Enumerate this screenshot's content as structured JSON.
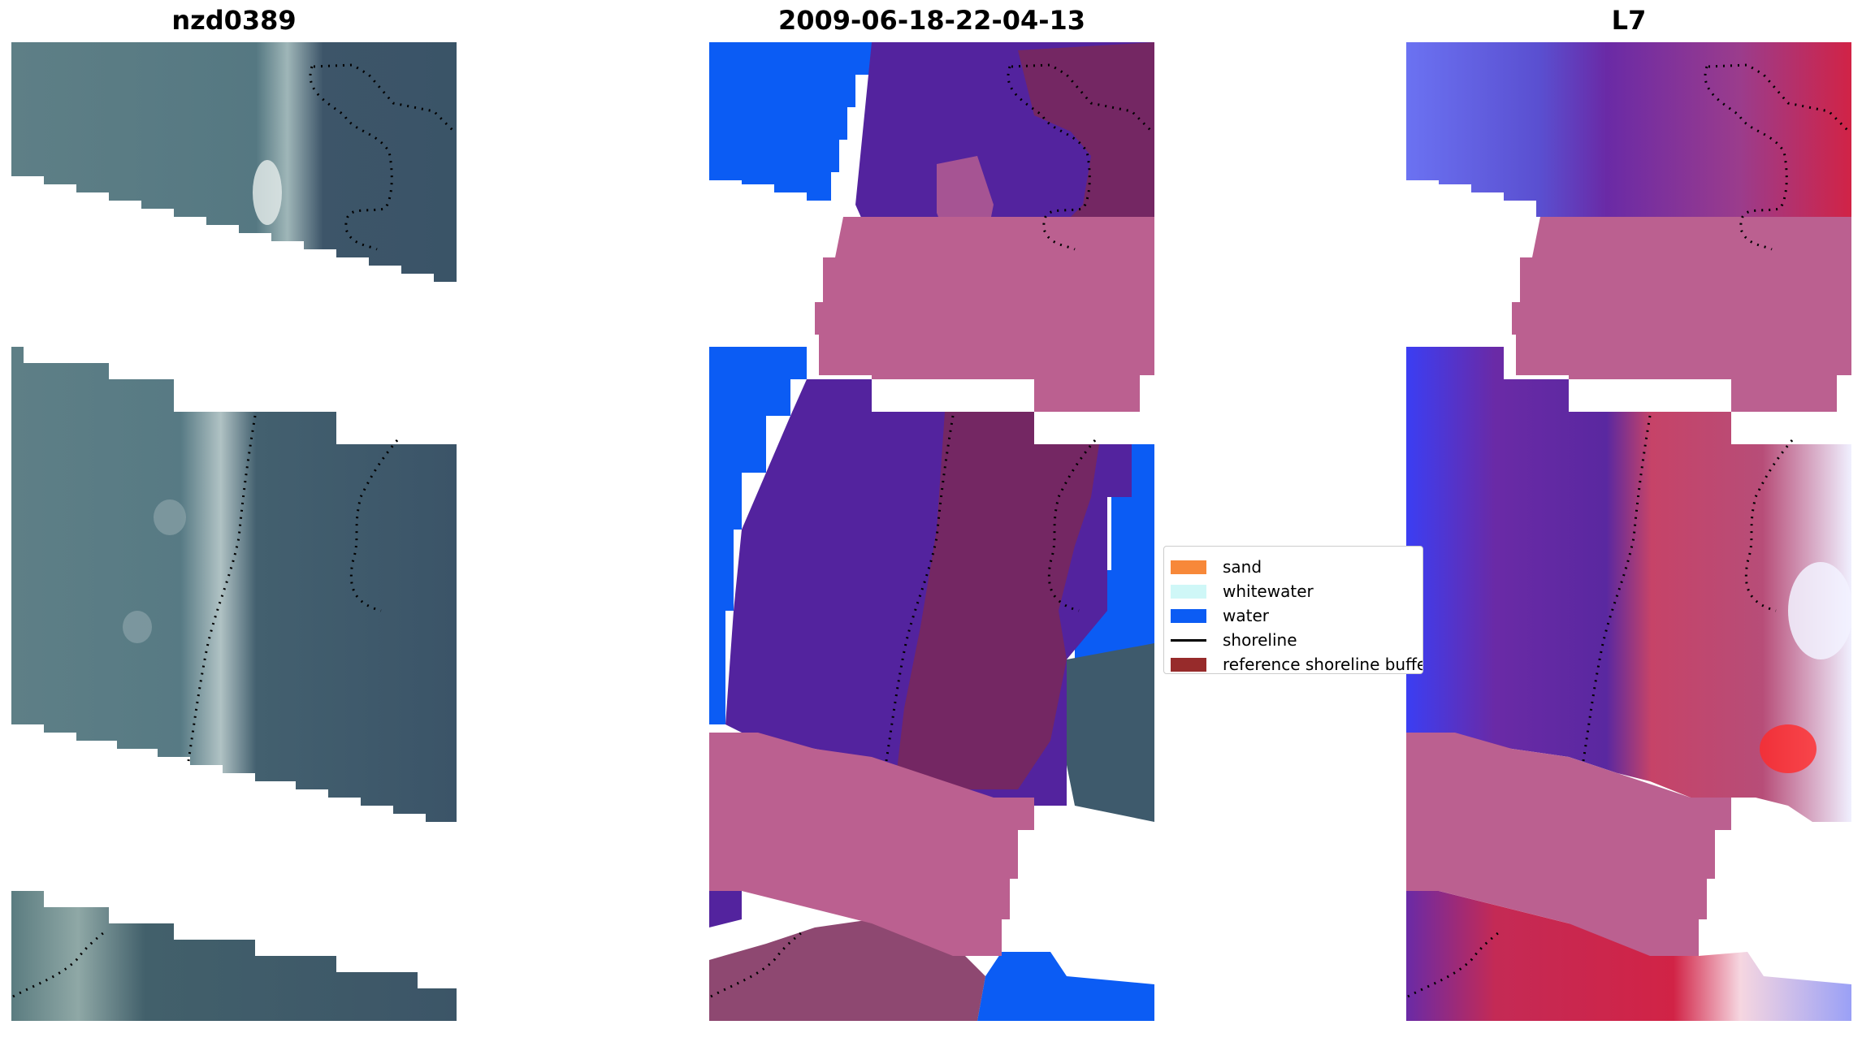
{
  "panels": [
    {
      "title": "nzd0389"
    },
    {
      "title": "2009-06-18-22-04-13"
    },
    {
      "title": "L7"
    }
  ],
  "legend": {
    "items": [
      {
        "label": "sand",
        "kind": "patch",
        "color": "#f78839"
      },
      {
        "label": "whitewater",
        "kind": "patch",
        "color": "#cff7f7"
      },
      {
        "label": "water",
        "kind": "patch",
        "color": "#0b5cf4"
      },
      {
        "label": "shoreline",
        "kind": "line",
        "color": "#000000"
      },
      {
        "label": "reference shoreline buffer",
        "kind": "patch",
        "color": "#972b2b"
      }
    ]
  },
  "colors": {
    "rgb_land": "#3e566b",
    "rgb_sea": "#5e7f86",
    "mask_pink": "#bb6090",
    "class_purple": "#53239e",
    "buffer_maroon": "#7a2858",
    "water_blue": "#0b5cf4",
    "ndwi_blue": "#4a4ef0",
    "ndwi_purple": "#6a2aa6",
    "ndwi_red": "#d12346"
  }
}
